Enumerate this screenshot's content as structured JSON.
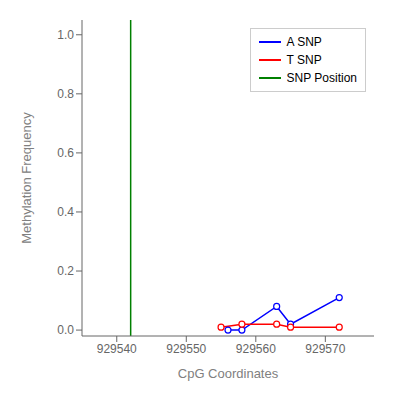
{
  "chart_data": {
    "type": "line",
    "xlabel": "CpG Coordinates",
    "ylabel": "Methylation Frequency",
    "xlim": [
      929535,
      929577
    ],
    "ylim": [
      -0.02,
      1.05
    ],
    "xticks": [
      929540,
      929550,
      929560,
      929570
    ],
    "yticks": [
      {
        "value": 0.0,
        "label": "0.0"
      },
      0.2,
      0.4,
      0.6,
      0.8,
      {
        "value": 1.0,
        "label": "1.0"
      }
    ],
    "marker": "o",
    "legend": "upper right",
    "grid": false,
    "series": [
      {
        "name": "A SNP",
        "color": "blue",
        "x": [
          929556,
          929558,
          929563,
          929565,
          929572
        ],
        "values": [
          0.0,
          0.0,
          0.08,
          0.02,
          0.11
        ]
      },
      {
        "name": "T SNP",
        "color": "red",
        "x": [
          929555,
          929558,
          929563,
          929565,
          929572
        ],
        "values": [
          0.01,
          0.02,
          0.02,
          0.01,
          0.01
        ]
      }
    ],
    "vline": {
      "name": "SNP Position",
      "x": 929542,
      "color": "green"
    }
  }
}
